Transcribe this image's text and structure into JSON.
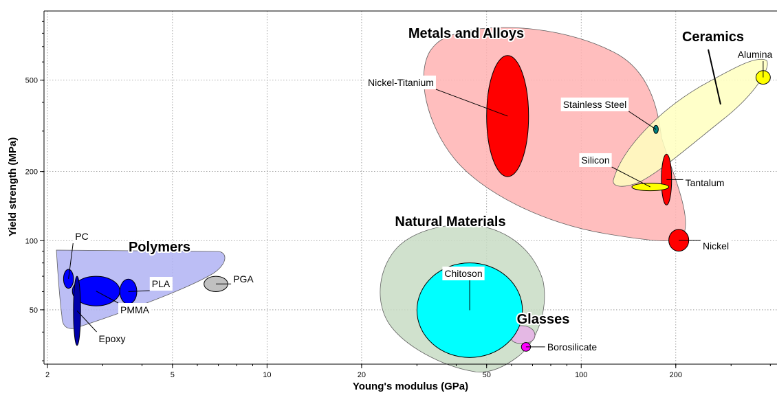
{
  "chart_data": {
    "type": "scatter",
    "title": "",
    "xlabel": "Young's modulus (GPa)",
    "ylabel": "Yield strength (MPa)",
    "xscale": "log",
    "yscale": "log",
    "xlim": [
      1.95,
      420
    ],
    "ylim": [
      29,
      1000
    ],
    "grid": true,
    "x_ticks": [
      {
        "value": 2,
        "label": "2"
      },
      {
        "value": 5,
        "label": "5"
      },
      {
        "value": 10,
        "label": "10"
      },
      {
        "value": 20,
        "label": "20"
      },
      {
        "value": 50,
        "label": "50"
      },
      {
        "value": 100,
        "label": "100"
      },
      {
        "value": 200,
        "label": "200"
      }
    ],
    "y_ticks": [
      {
        "value": 50,
        "label": "50"
      },
      {
        "value": 100,
        "label": "100"
      },
      {
        "value": 200,
        "label": "200"
      },
      {
        "value": 500,
        "label": "500"
      }
    ],
    "groups": [
      {
        "name": "Metals and Alloys",
        "color": "#ffb3b3"
      },
      {
        "name": "Ceramics",
        "color": "#ffffc0"
      },
      {
        "name": "Polymers",
        "color": "#b0b3f3"
      },
      {
        "name": "Natural Materials",
        "color": "#c8dcc4"
      },
      {
        "name": "Glasses",
        "color": "#e8b0e8"
      }
    ],
    "materials": [
      {
        "name": "Nickel-Titanium",
        "group": "Metals and Alloys",
        "color": "#ff0000",
        "x_range": [
          50,
          68
        ],
        "y_range": [
          190,
          640
        ]
      },
      {
        "name": "Stainless Steel",
        "group": "Metals and Alloys",
        "color": "#008080",
        "x_range": [
          170,
          176
        ],
        "y_range": [
          293,
          318
        ]
      },
      {
        "name": "Tantalum",
        "group": "Metals and Alloys",
        "color": "#ff0000",
        "x_range": [
          180,
          194
        ],
        "y_range": [
          143,
          238
        ]
      },
      {
        "name": "Nickel",
        "group": "Metals and Alloys",
        "color": "#ff0000",
        "x_range": [
          190,
          220
        ],
        "y_range": [
          90,
          112
        ]
      },
      {
        "name": "Silicon",
        "group": "Ceramics",
        "color": "#ffff00",
        "x_range": [
          145,
          190
        ],
        "y_range": [
          165,
          178
        ]
      },
      {
        "name": "Alumina",
        "group": "Ceramics",
        "color": "#ffff00",
        "x_range": [
          360,
          400
        ],
        "y_range": [
          480,
          550
        ]
      },
      {
        "name": "PC",
        "group": "Polymers",
        "color": "#0000ff",
        "x_range": [
          2.25,
          2.42
        ],
        "y_range": [
          62,
          75
        ]
      },
      {
        "name": "PMMA",
        "group": "Polymers",
        "color": "#0000ff",
        "x_range": [
          2.4,
          3.4
        ],
        "y_range": [
          52,
          70
        ]
      },
      {
        "name": "PLA",
        "group": "Polymers",
        "color": "#0000ff",
        "x_range": [
          3.4,
          3.85
        ],
        "y_range": [
          53,
          68
        ]
      },
      {
        "name": "Epoxy",
        "group": "Polymers",
        "color": "#0000aa",
        "x_range": [
          2.42,
          2.55
        ],
        "y_range": [
          35,
          70
        ]
      },
      {
        "name": "PGA",
        "group": "Polymers",
        "color": "#c0c0c0",
        "x_range": [
          6.3,
          7.5
        ],
        "y_range": [
          60,
          70
        ]
      },
      {
        "name": "Chitoson",
        "group": "Natural Materials",
        "color": "#00ffff",
        "x_range": [
          30,
          65
        ],
        "y_range": [
          31,
          80
        ]
      },
      {
        "name": "Borosilicate",
        "group": "Glasses",
        "color": "#ff00ff",
        "x_range": [
          64.5,
          69
        ],
        "y_range": [
          33,
          36
        ]
      }
    ]
  }
}
